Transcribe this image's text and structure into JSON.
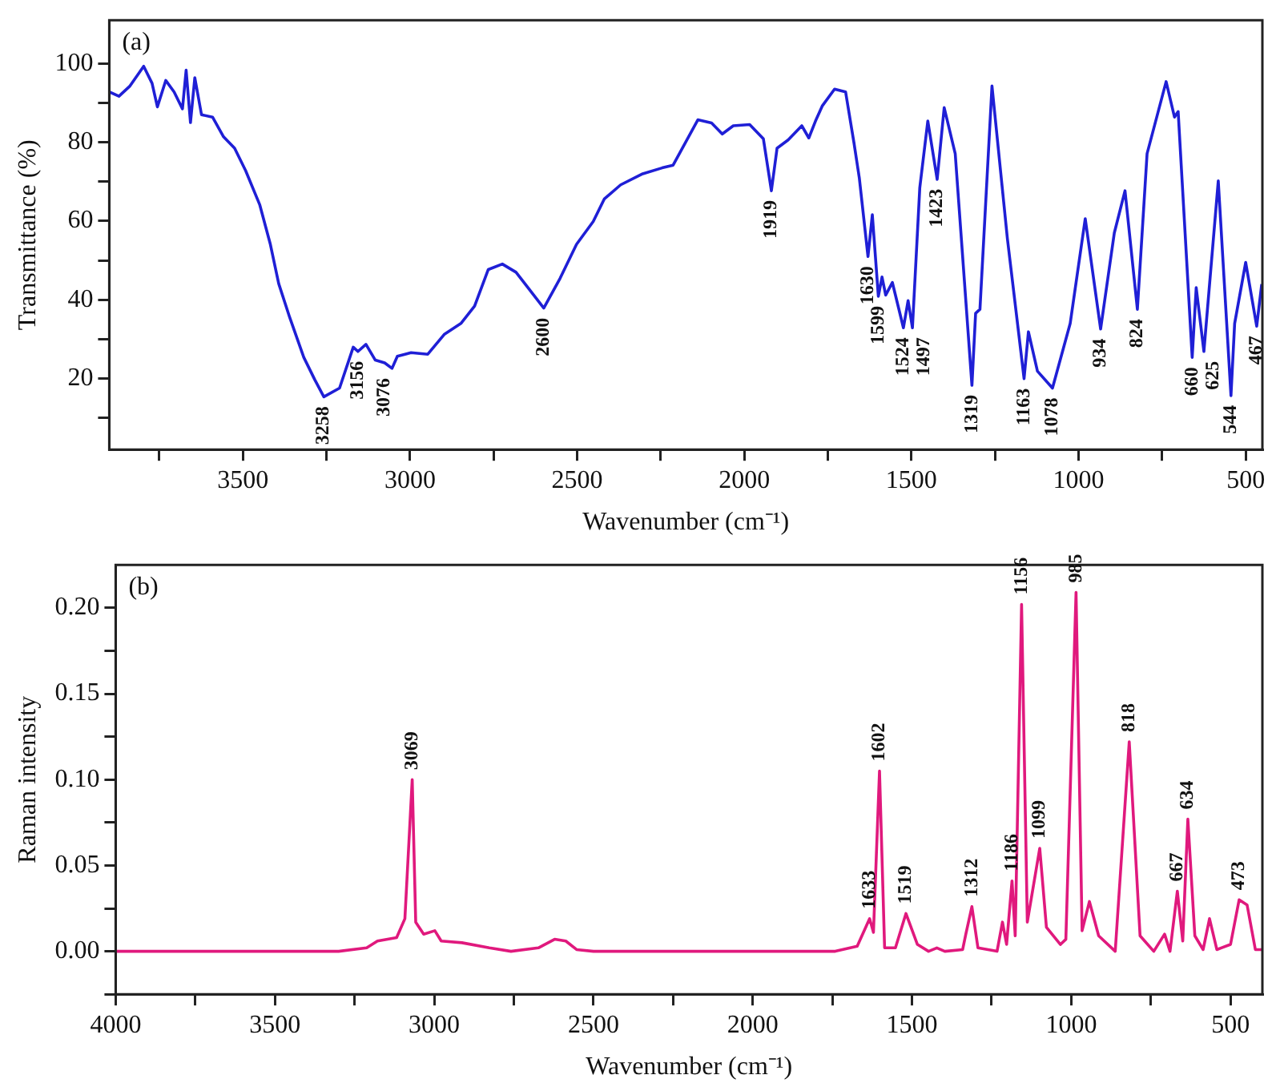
{
  "chart_data": [
    {
      "type": "line",
      "xlabel": "Wavenumber (cm⁻¹)",
      "ylabel": "Transmittance (%)",
      "annotations": [
        "(a)",
        {
          "text": "3258",
          "x": 3258,
          "y": 15.4
        },
        {
          "text": "3156",
          "x": 3156,
          "y": 26.9
        },
        {
          "text": "3076",
          "x": 3076,
          "y": 22.6
        },
        {
          "text": "2600",
          "x": 2600,
          "y": 37.9
        },
        {
          "text": "1919",
          "x": 1919,
          "y": 67.7
        },
        {
          "text": "1630",
          "x": 1630,
          "y": 51
        },
        {
          "text": "1599",
          "x": 1599,
          "y": 40.9
        },
        {
          "text": "1524",
          "x": 1524,
          "y": 32.9
        },
        {
          "text": "1497",
          "x": 1497,
          "y": 32.9
        },
        {
          "text": "1423",
          "x": 1423,
          "y": 70.6
        },
        {
          "text": "1319",
          "x": 1319,
          "y": 18.3
        },
        {
          "text": "1163",
          "x": 1163,
          "y": 20
        },
        {
          "text": "1078",
          "x": 1078,
          "y": 17.6
        },
        {
          "text": "934",
          "x": 934,
          "y": 32.6
        },
        {
          "text": "824",
          "x": 824,
          "y": 37.6
        },
        {
          "text": "660",
          "x": 660,
          "y": 25.4
        },
        {
          "text": "625",
          "x": 625,
          "y": 26.9
        },
        {
          "text": "544",
          "x": 544,
          "y": 15.7
        },
        {
          "text": "467",
          "x": 467,
          "y": 33.3
        }
      ],
      "xlim": [
        3900,
        450
      ],
      "xticks": [
        {
          "value": 3750,
          "label": null
        },
        3500,
        {
          "value": 3250,
          "label": null
        },
        3000,
        {
          "value": 2750,
          "label": null
        },
        2500,
        {
          "value": 2250,
          "label": null
        },
        2000,
        {
          "value": 1750,
          "label": null
        },
        1500,
        {
          "value": 1250,
          "label": null
        },
        1000,
        {
          "value": 750,
          "label": null
        },
        500
      ],
      "ylim": [
        2,
        111
      ],
      "yticks": [
        {
          "value": 10,
          "label": null
        },
        20,
        {
          "value": 30,
          "label": null
        },
        40,
        {
          "value": 50,
          "label": null
        },
        60,
        {
          "value": 70,
          "label": null
        },
        80,
        {
          "value": 90,
          "label": null
        },
        100
      ],
      "grid": false,
      "legend": false,
      "series": [
        {
          "color": "#1f1fd6",
          "x": [
            3900,
            3871,
            3838,
            3797,
            3772,
            3756,
            3731,
            3706,
            3681,
            3670,
            3657,
            3644,
            3624,
            3591,
            3558,
            3525,
            3492,
            3450,
            3418,
            3393,
            3360,
            3318,
            3285,
            3258,
            3211,
            3170,
            3156,
            3132,
            3104,
            3076,
            3054,
            3038,
            2997,
            2947,
            2898,
            2848,
            2807,
            2766,
            2724,
            2683,
            2650,
            2600,
            2551,
            2502,
            2452,
            2419,
            2370,
            2304,
            2246,
            2213,
            2139,
            2098,
            2066,
            2033,
            1984,
            1943,
            1919,
            1902,
            1869,
            1828,
            1807,
            1787,
            1767,
            1730,
            1697,
            1672,
            1656,
            1630,
            1617,
            1599,
            1588,
            1577,
            1557,
            1524,
            1510,
            1497,
            1475,
            1451,
            1423,
            1402,
            1369,
            1319,
            1308,
            1295,
            1259,
            1213,
            1163,
            1150,
            1123,
            1078,
            1025,
            980,
            934,
            893,
            861,
            824,
            795,
            738,
            713,
            702,
            660,
            648,
            625,
            582,
            544,
            533,
            500,
            467,
            452
          ],
          "values": [
            92.8,
            91.7,
            94.3,
            99.3,
            95,
            89,
            95.7,
            92.8,
            88.5,
            98.3,
            85,
            96.4,
            87,
            86.4,
            81.4,
            78.5,
            72.8,
            64.2,
            54.1,
            44.1,
            35.5,
            25.4,
            19.7,
            15.4,
            17.6,
            28,
            26.9,
            28.7,
            24.7,
            24,
            22.6,
            25.7,
            26.6,
            26.2,
            31.2,
            34,
            38.4,
            47.7,
            49.1,
            47,
            43.4,
            37.9,
            45.5,
            54.1,
            59.9,
            65.6,
            69.2,
            72,
            73.5,
            74.2,
            85.7,
            84.9,
            82.1,
            84.2,
            84.5,
            80.9,
            67.7,
            78.5,
            80.6,
            84.2,
            81.1,
            85.4,
            89.2,
            93.5,
            92.8,
            79.9,
            71,
            51,
            61.6,
            40.9,
            45.8,
            41.2,
            44.4,
            32.9,
            39.8,
            32.9,
            68.5,
            85.4,
            70.6,
            88.8,
            77.1,
            18.3,
            36.6,
            37.6,
            94.3,
            55.6,
            20,
            31.9,
            21.9,
            17.6,
            34,
            60.6,
            32.6,
            57,
            67.7,
            37.6,
            77.1,
            95.4,
            86.4,
            87.8,
            25.4,
            43.1,
            26.9,
            70.2,
            15.7,
            34,
            49.5,
            33.3,
            44
          ]
        }
      ]
    },
    {
      "type": "line",
      "xlabel": "Wavenumber (cm⁻¹)",
      "ylabel": "Raman intensity",
      "annotations": [
        "(b)",
        {
          "text": "3069",
          "x": 3069,
          "y": 0.1
        },
        {
          "text": "1633",
          "x": 1633,
          "y": 0.019
        },
        {
          "text": "1602",
          "x": 1602,
          "y": 0.105
        },
        {
          "text": "1519",
          "x": 1519,
          "y": 0.022
        },
        {
          "text": "1312",
          "x": 1312,
          "y": 0.026
        },
        {
          "text": "1186",
          "x": 1186,
          "y": 0.041
        },
        {
          "text": "1156",
          "x": 1156,
          "y": 0.202
        },
        {
          "text": "1099",
          "x": 1099,
          "y": 0.06
        },
        {
          "text": "985",
          "x": 985,
          "y": 0.209
        },
        {
          "text": "818",
          "x": 818,
          "y": 0.122
        },
        {
          "text": "667",
          "x": 667,
          "y": 0.035
        },
        {
          "text": "634",
          "x": 634,
          "y": 0.077
        },
        {
          "text": "473",
          "x": 473,
          "y": 0.03
        }
      ],
      "xlim": [
        4000,
        400
      ],
      "xticks": [
        4000,
        {
          "value": 3750,
          "label": null
        },
        3500,
        {
          "value": 3250,
          "label": null
        },
        3000,
        {
          "value": 2750,
          "label": null
        },
        2500,
        {
          "value": 2250,
          "label": null
        },
        2000,
        {
          "value": 1750,
          "label": null
        },
        1500,
        {
          "value": 1250,
          "label": null
        },
        1000,
        {
          "value": 750,
          "label": null
        },
        500
      ],
      "ylim": [
        -0.025,
        0.225
      ],
      "yticks": [
        {
          "value": -0.025,
          "label": null
        },
        {
          "value": 0,
          "label": "0.00"
        },
        {
          "value": 0.025,
          "label": null
        },
        {
          "value": 0.05,
          "label": "0.05"
        },
        {
          "value": 0.075,
          "label": null
        },
        {
          "value": 0.1,
          "label": "0.10"
        },
        {
          "value": 0.125,
          "label": null
        },
        {
          "value": 0.15,
          "label": "0.15"
        },
        {
          "value": 0.175,
          "label": null
        },
        {
          "value": 0.2,
          "label": "0.20"
        }
      ],
      "grid": false,
      "legend": false,
      "series": [
        {
          "color": "#e0197d",
          "x": [
            4000,
            3300,
            3212,
            3178,
            3118,
            3092,
            3069,
            3058,
            3033,
            2998,
            2978,
            2913,
            2827,
            2759,
            2673,
            2622,
            2587,
            2553,
            2500,
            1741,
            1672,
            1633,
            1621,
            1602,
            1586,
            1552,
            1519,
            1483,
            1448,
            1422,
            1397,
            1341,
            1331,
            1312,
            1293,
            1233,
            1216,
            1203,
            1186,
            1176,
            1156,
            1138,
            1099,
            1078,
            1034,
            1017,
            985,
            966,
            943,
            914,
            862,
            818,
            784,
            741,
            707,
            690,
            667,
            650,
            634,
            612,
            586,
            566,
            543,
            500,
            473,
            448,
            422,
            400
          ],
          "values": [
            0,
            0,
            0.002,
            0.006,
            0.008,
            0.019,
            0.1,
            0.017,
            0.01,
            0.012,
            0.006,
            0.005,
            0.002,
            0,
            0.002,
            0.007,
            0.006,
            0.001,
            0,
            0,
            0.003,
            0.019,
            0.011,
            0.105,
            0.002,
            0.002,
            0.022,
            0.004,
            0,
            0.002,
            0,
            0.001,
            0.01,
            0.026,
            0.002,
            0,
            0.017,
            0.004,
            0.041,
            0.009,
            0.202,
            0.017,
            0.06,
            0.014,
            0.004,
            0.007,
            0.209,
            0.012,
            0.029,
            0.009,
            0,
            0.122,
            0.009,
            0,
            0.01,
            0,
            0.035,
            0.006,
            0.077,
            0.009,
            0.001,
            0.019,
            0.001,
            0.004,
            0.03,
            0.027,
            0.001,
            0.001
          ]
        }
      ]
    }
  ]
}
